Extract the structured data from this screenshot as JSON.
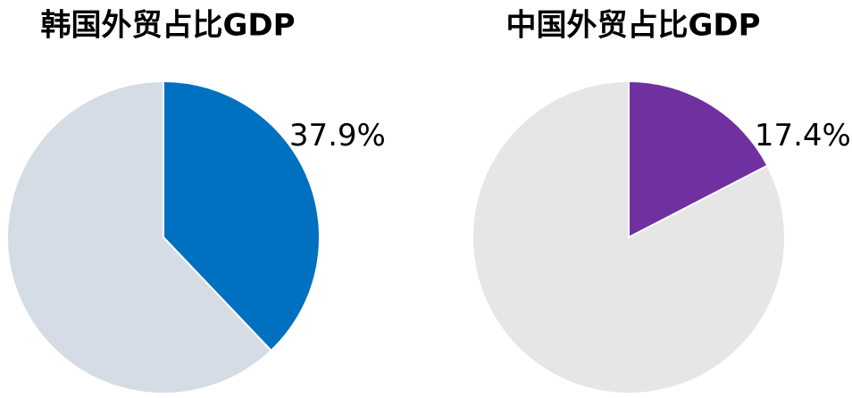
{
  "chart_data": [
    {
      "type": "pie",
      "title": "韩国外贸占比GDP",
      "values": [
        37.9,
        62.1
      ],
      "value_labels": [
        "37.9%",
        null
      ],
      "colors": [
        "#0070c0",
        "#d6dce5"
      ]
    },
    {
      "type": "pie",
      "title": "中国外贸占比GDP",
      "values": [
        17.4,
        82.6
      ],
      "value_labels": [
        "17.4%",
        null
      ],
      "colors": [
        "#7030a0",
        "#e6e6e6"
      ]
    }
  ]
}
